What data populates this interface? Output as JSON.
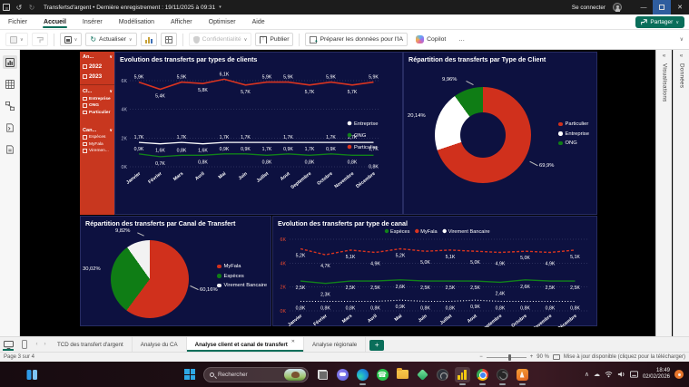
{
  "window": {
    "title": "Transfertsd'argent  •  Dernière enregistrement : 19/11/2025 à 09:31",
    "sign_in": "Se connecter"
  },
  "menu": {
    "items": [
      "Fichier",
      "Accueil",
      "Insérer",
      "Modélisation",
      "Afficher",
      "Optimiser",
      "Aide"
    ],
    "active_item": "Accueil",
    "share_label": "Partager"
  },
  "toolbar": {
    "refresh_label": "Actualiser",
    "confidentiality_label": "Confidentialité",
    "publish_label": "Publier",
    "prepare_ai_label": "Préparer les données pour l'IA",
    "copilot_label": "Copilot",
    "more_label": "…"
  },
  "slicers": [
    {
      "header": "An...",
      "items": [
        "2022",
        "2023"
      ]
    },
    {
      "header": "Cl...",
      "items": [
        "Entreprise",
        "ONG",
        "Particulier"
      ]
    },
    {
      "header": "Can...",
      "items": [
        "Espèces",
        "MyFala",
        "Viremen..."
      ]
    }
  ],
  "right_panels": {
    "visualizations": "Visualisations",
    "data": "Données"
  },
  "chart_data": [
    {
      "type": "line",
      "title": "Evolution des transferts par types de clients",
      "categories": [
        "Janvier",
        "Février",
        "Mars",
        "Avril",
        "Mai",
        "Juin",
        "Juillet",
        "Aout",
        "Septembre",
        "Octobre",
        "Novembre",
        "Décembre"
      ],
      "ylim": [
        0,
        7000
      ],
      "yticks": [
        {
          "value": 0,
          "label": "0K"
        },
        {
          "value": 2000,
          "label": "2K"
        },
        {
          "value": 4000,
          "label": "4K"
        },
        {
          "value": 6000,
          "label": "6K"
        }
      ],
      "legend_position": "right",
      "series": [
        {
          "name": "Entreprise",
          "color": "#ffffff",
          "width": 1.3,
          "values": [
            1700,
            1600,
            1700,
            1600,
            1700,
            1700,
            1700,
            1700,
            1700,
            1700,
            1700,
            1700
          ],
          "labels": [
            "1,7K",
            "1,6K",
            "1,7K",
            "1,6K",
            "1,7K",
            "1,7K",
            "1,7K",
            "1,7K",
            "1,7K",
            "1,7K",
            "1,7K",
            "1,7K"
          ],
          "label_side": [
            "a",
            "b",
            "a",
            "b",
            "a",
            "a",
            "b",
            "a",
            "b",
            "a",
            "a",
            "b"
          ]
        },
        {
          "name": "ONG",
          "color": "#11821a",
          "width": 1.3,
          "values": [
            900,
            700,
            800,
            800,
            900,
            900,
            800,
            900,
            800,
            900,
            800,
            800
          ],
          "labels": [
            "0,9K",
            "0,7K",
            "0,8K",
            "0,8K",
            "0,9K",
            "0,9K",
            "0,8K",
            "0,9K",
            "0,8K",
            "0,9K",
            "0,8K",
            "0,8K"
          ],
          "label_side": [
            "a",
            "b",
            "a",
            "b",
            "a",
            "a",
            "b",
            "a",
            "b",
            "a",
            "b",
            "c"
          ]
        },
        {
          "name": "Particulier",
          "color": "#d93420",
          "width": 1.6,
          "values": [
            5900,
            5400,
            5900,
            5800,
            6100,
            5700,
            5900,
            5900,
            5700,
            5900,
            5700,
            5900
          ],
          "labels": [
            "5,9K",
            "5,4K",
            "5,9K",
            "5,8K",
            "6,1K",
            "5,7K",
            "5,9K",
            "5,9K",
            "5,7K",
            "5,9K",
            "5,7K",
            "5,9K"
          ],
          "label_side": [
            "a",
            "b",
            "a",
            "b",
            "a",
            "b",
            "a",
            "a",
            "b",
            "a",
            "b",
            "a"
          ]
        }
      ]
    },
    {
      "type": "donut",
      "title": "Répartition des transferts par Type de Client",
      "slices": [
        {
          "name": "Particulier",
          "color": "#d0301c",
          "pct": 69.9,
          "label": "69,9%"
        },
        {
          "name": "Entreprise",
          "color": "#ffffff",
          "pct": 20.14,
          "label": "20,14%"
        },
        {
          "name": "ONG",
          "color": "#0f7d15",
          "pct": 9.96,
          "label": "9,96%"
        }
      ]
    },
    {
      "type": "pie",
      "title": "Répartition des transferts par Canal de Transfert",
      "slices": [
        {
          "name": "MyFala",
          "color": "#d0301c",
          "pct": 60.16,
          "label": "60,16%"
        },
        {
          "name": "Espèces",
          "color": "#0f7d15",
          "pct": 30.02,
          "label": "30,02%"
        },
        {
          "name": "Virement Bancaire",
          "color": "#f2f2f2",
          "pct": 9.82,
          "label": "9,82%"
        }
      ]
    },
    {
      "type": "line",
      "title": "Evolution des transferts par type de canal",
      "categories": [
        "Janvier",
        "Février",
        "Mars",
        "Avril",
        "Mai",
        "Juin",
        "Juillet",
        "Aout",
        "Septembre",
        "Octobre",
        "Novembre",
        "Décembre"
      ],
      "ylim": [
        0,
        7000
      ],
      "yticks": [
        {
          "value": 0,
          "label": "0K"
        },
        {
          "value": 2000,
          "label": "2K"
        },
        {
          "value": 4000,
          "label": "4K"
        },
        {
          "value": 6000,
          "label": "6K"
        }
      ],
      "ytick_color": "#e8492e",
      "legend_position": "top",
      "series": [
        {
          "name": "Espèces",
          "color": "#11821a",
          "width": 1.4,
          "values": [
            2500,
            2300,
            2500,
            2500,
            2600,
            2500,
            2500,
            2500,
            2400,
            2600,
            2500,
            2500
          ],
          "labels": [
            "2,5K",
            "2,3K",
            "2,5K",
            "2,5K",
            "2,6K",
            "2,5K",
            "2,5K",
            "2,5K",
            "2,4K",
            "2,6K",
            "2,5K",
            "2,5K"
          ],
          "label_side": [
            "b",
            "c",
            "b",
            "b",
            "b",
            "b",
            "b",
            "b",
            "c",
            "b",
            "b",
            "b"
          ]
        },
        {
          "name": "MyFala",
          "color": "#d93420",
          "width": 1.4,
          "dash": "3,2",
          "values": [
            5200,
            4700,
            5100,
            4900,
            5200,
            5000,
            5100,
            5000,
            4900,
            5000,
            4900,
            5100
          ],
          "labels": [
            "5,2K",
            "4,7K",
            "5,1K",
            "4,9K",
            "5,2K",
            "5,0K",
            "5,1K",
            "5,0K",
            "4,9K",
            "5,0K",
            "4,9K",
            "5,1K"
          ],
          "label_side": [
            "b",
            "c",
            "b",
            "c",
            "b",
            "c",
            "b",
            "c",
            "c",
            "b",
            "c",
            "b"
          ]
        },
        {
          "name": "Virement Bancaire",
          "color": "#ffffff",
          "width": 1.1,
          "dash": "1,2.2",
          "values": [
            800,
            800,
            800,
            800,
            900,
            800,
            800,
            900,
            800,
            800,
            800,
            800
          ],
          "labels": [
            "0,8K",
            "0,8K",
            "0,8K",
            "0,8K",
            "0,9K",
            "0,8K",
            "0,8K",
            "0,9K",
            "0,8K",
            "0,8K",
            "0,8K",
            "0,8K"
          ],
          "label_side": [
            "b",
            "b",
            "b",
            "b",
            "b",
            "b",
            "b",
            "b",
            "b",
            "b",
            "b",
            "b"
          ]
        }
      ]
    }
  ],
  "footer": {
    "pages": [
      "TCD des transfert d'argent",
      "Analyse du CA",
      "Analyse client et canal de transfert",
      "Analyse régionale"
    ],
    "active_page": "Analyse client et canal de transfert"
  },
  "status": {
    "page_indicator": "Page 3 sur 4",
    "zoom_level": "90 %",
    "update_notice": "Mise à jour disponible (cliquez pour la télécharger)"
  },
  "taskbar": {
    "search_placeholder": "Rechercher",
    "time": "18:49",
    "date": "02/02/2026"
  },
  "colors": {
    "accent_green": "#0a6e5a",
    "series_red": "#d93420",
    "series_green": "#11821a",
    "chart_navy": "#0d1140",
    "slicer_red": "#c8371f"
  }
}
